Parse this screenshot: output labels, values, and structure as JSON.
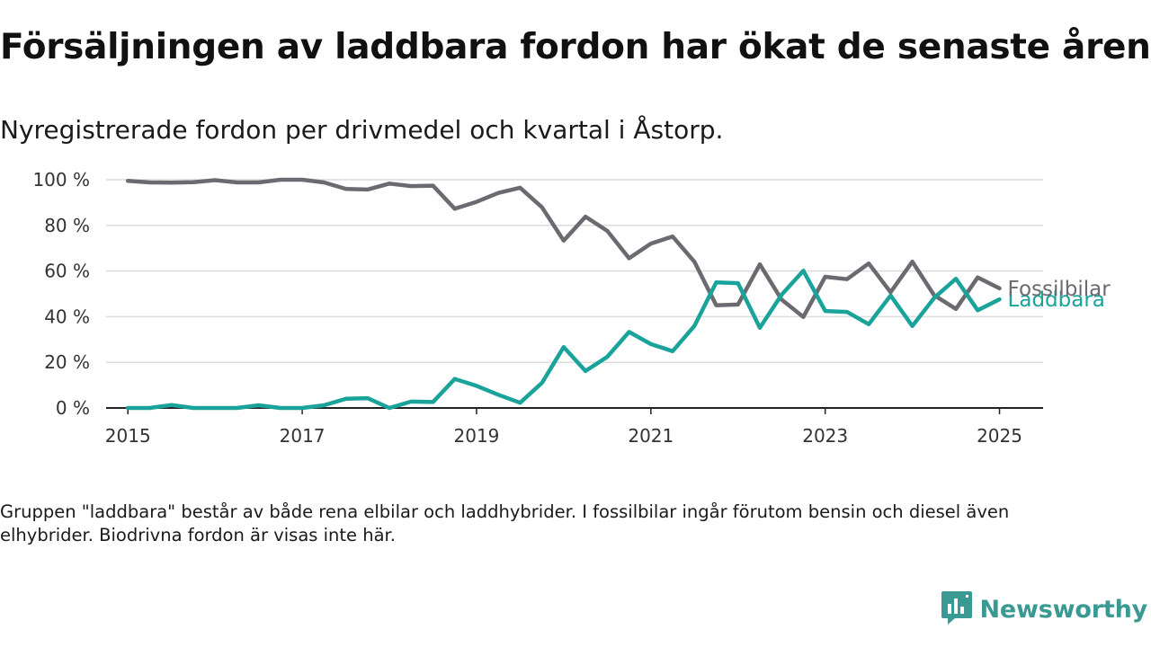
{
  "title": "Försäljningen av laddbara fordon har ökat de senaste åren",
  "subtitle": "Nyregistrerade fordon per drivmedel och kvartal i Åstorp.",
  "footnote": "Gruppen \"laddbara\" består av både rena elbilar och laddhybrider. I fossilbilar ingår förutom bensin och diesel även elhybrider. Biodrivna fordon är visas inte här.",
  "brand": {
    "name": "Newsworthy",
    "icon": "newsworthy-logo-icon",
    "color": "#3a9a93"
  },
  "chart_data": {
    "type": "line",
    "title": "",
    "xlabel": "",
    "ylabel": "",
    "xlim": [
      2014.75,
      2025.5
    ],
    "ylim": [
      0,
      100
    ],
    "x_ticks": [
      2015,
      2017,
      2019,
      2021,
      2023,
      2025
    ],
    "x_tick_labels": [
      "2015",
      "2017",
      "2019",
      "2021",
      "2023",
      "2025"
    ],
    "y_ticks": [
      0,
      20,
      40,
      60,
      80,
      100
    ],
    "y_tick_labels": [
      "0 %",
      "20 %",
      "40 %",
      "60 %",
      "80 %",
      "100 %"
    ],
    "grid": "horizontal",
    "legend": "direct labels at line ends",
    "x": [
      2015,
      2015.25,
      2015.5,
      2015.75,
      2016,
      2016.25,
      2016.5,
      2016.75,
      2017,
      2017.25,
      2017.5,
      2017.75,
      2018,
      2018.25,
      2018.5,
      2018.75,
      2019,
      2019.25,
      2019.5,
      2019.75,
      2020,
      2020.25,
      2020.5,
      2020.75,
      2021,
      2021.25,
      2021.5,
      2021.75,
      2022,
      2022.25,
      2022.5,
      2022.75,
      2023,
      2023.25,
      2023.5,
      2023.75,
      2024,
      2024.25,
      2024.5,
      2024.75,
      2025
    ],
    "series": [
      {
        "name": "Fossilbilar",
        "color": "#6b6a70",
        "values": [
          99.5,
          98.8,
          98.7,
          98.9,
          99.8,
          98.8,
          98.8,
          100,
          100,
          98.8,
          96,
          95.7,
          98.3,
          97.2,
          97.4,
          87.3,
          90.3,
          94.2,
          96.5,
          87.9,
          73.3,
          83.8,
          77.6,
          65.6,
          72,
          75.1,
          64,
          45,
          45.3,
          62.9,
          47.5,
          39.9,
          57.5,
          56.4,
          63.3,
          50.7,
          64.1,
          49.4,
          43.4,
          57.2,
          52.4
        ]
      },
      {
        "name": "Laddbara",
        "color": "#1aa39a",
        "values": [
          0,
          0,
          1.3,
          0,
          0,
          0,
          1.2,
          0,
          0,
          1.2,
          4,
          4.3,
          0,
          2.8,
          2.6,
          12.7,
          9.7,
          5.8,
          2.3,
          11,
          26.7,
          16.2,
          22.4,
          33.3,
          28,
          24.9,
          36,
          55,
          54.7,
          35.1,
          49.6,
          60.1,
          42.5,
          42.1,
          36.7,
          49.3,
          35.9,
          48.2,
          56.6,
          42.8,
          47.6
        ]
      }
    ]
  }
}
